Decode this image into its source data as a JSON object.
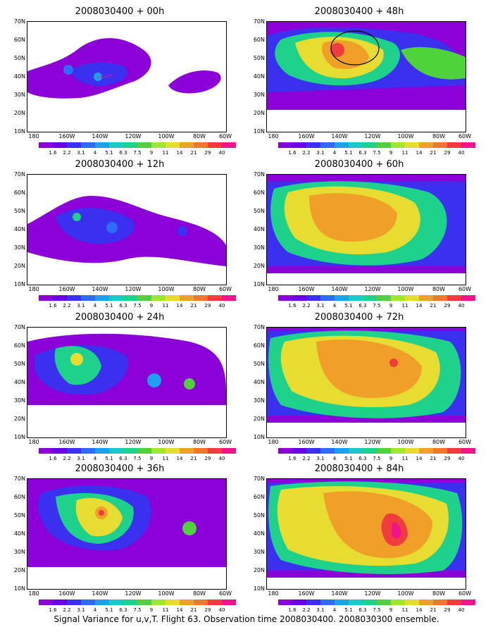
{
  "caption": "Signal Variance for u,v,T. Flight 63. Observation time 2008030400. 2008030300 ensemble.",
  "lat_labels": [
    "70N",
    "60N",
    "50N",
    "40N",
    "30N",
    "20N",
    "10N"
  ],
  "lon_labels": [
    "180",
    "160W",
    "140W",
    "120W",
    "100W",
    "80W",
    "60W"
  ],
  "colorbar": {
    "levels": [
      "1.6",
      "2.2",
      "3.1",
      "4",
      "5.1",
      "6.3",
      "7.5",
      "9",
      "11",
      "14",
      "21",
      "29",
      "40"
    ],
    "colors": [
      "#8c00d8",
      "#6a00e6",
      "#3b30f0",
      "#2e6cf5",
      "#1ea0f0",
      "#1ec8c8",
      "#1ed28c",
      "#50d23c",
      "#a0e632",
      "#e6dc32",
      "#f0a028",
      "#f07828",
      "#f03c3c",
      "#f0148c"
    ]
  },
  "panels": [
    {
      "title": "2008030400 + 00h"
    },
    {
      "title": "2008030400 + 48h"
    },
    {
      "title": "2008030400 + 12h"
    },
    {
      "title": "2008030400 + 60h"
    },
    {
      "title": "2008030400 + 24h"
    },
    {
      "title": "2008030400 + 72h"
    },
    {
      "title": "2008030400 + 36h"
    },
    {
      "title": "2008030400 + 84h"
    }
  ]
}
